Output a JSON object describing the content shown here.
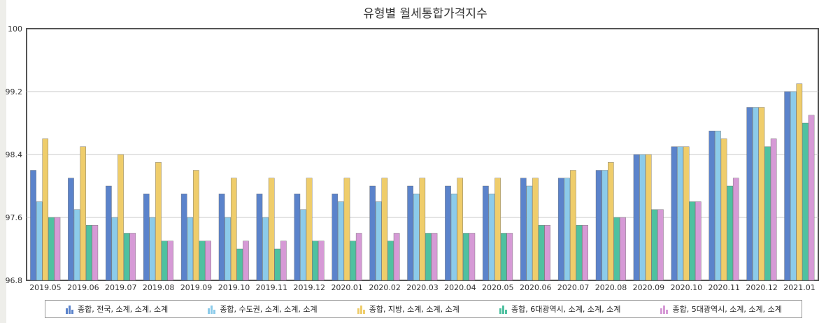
{
  "chart_data": {
    "type": "bar",
    "title": "유형별 월세통합가격지수",
    "ylim": [
      96.8,
      100
    ],
    "yticks": [
      "96.8",
      "97.6",
      "98.4",
      "99.2",
      "100"
    ],
    "categories": [
      "2019.05",
      "2019.06",
      "2019.07",
      "2019.08",
      "2019.09",
      "2019.10",
      "2019.11",
      "2019.12",
      "2020.01",
      "2020.02",
      "2020.03",
      "2020.04",
      "2020.05",
      "2020.06",
      "2020.07",
      "2020.08",
      "2020.09",
      "2020.10",
      "2020.11",
      "2020.12",
      "2021.01"
    ],
    "grid": true,
    "legend_position": "bottom",
    "series": [
      {
        "name": "종합, 전국, 소계, 소계, 소계",
        "color": "#5b83cb",
        "values": [
          98.2,
          98.1,
          98.0,
          97.9,
          97.9,
          97.9,
          97.9,
          97.9,
          97.9,
          98.0,
          98.0,
          98.0,
          98.0,
          98.1,
          98.1,
          98.2,
          98.4,
          98.5,
          98.7,
          99.0,
          99.2
        ]
      },
      {
        "name": "종합, 수도권, 소계, 소계, 소계",
        "color": "#8ccbea",
        "values": [
          97.8,
          97.7,
          97.6,
          97.6,
          97.6,
          97.6,
          97.6,
          97.7,
          97.8,
          97.8,
          97.9,
          97.9,
          97.9,
          98.0,
          98.1,
          98.2,
          98.4,
          98.5,
          98.7,
          99.0,
          99.2
        ]
      },
      {
        "name": "종합, 지방, 소계, 소계, 소계",
        "color": "#efcd6b",
        "values": [
          98.6,
          98.5,
          98.4,
          98.3,
          98.2,
          98.1,
          98.1,
          98.1,
          98.1,
          98.1,
          98.1,
          98.1,
          98.1,
          98.1,
          98.2,
          98.3,
          98.4,
          98.5,
          98.6,
          99.0,
          99.3
        ]
      },
      {
        "name": "종합, 6대광역시, 소계, 소계, 소계",
        "color": "#4fc1a0",
        "values": [
          97.6,
          97.5,
          97.4,
          97.3,
          97.3,
          97.2,
          97.2,
          97.3,
          97.3,
          97.3,
          97.4,
          97.4,
          97.4,
          97.5,
          97.5,
          97.6,
          97.7,
          97.8,
          98.0,
          98.5,
          98.8
        ]
      },
      {
        "name": "종합, 5대광역시, 소계, 소계, 소계",
        "color": "#d69ad6",
        "values": [
          97.6,
          97.5,
          97.4,
          97.3,
          97.3,
          97.3,
          97.3,
          97.3,
          97.4,
          97.4,
          97.4,
          97.4,
          97.4,
          97.5,
          97.5,
          97.6,
          97.7,
          97.8,
          98.1,
          98.6,
          98.9
        ]
      }
    ]
  }
}
